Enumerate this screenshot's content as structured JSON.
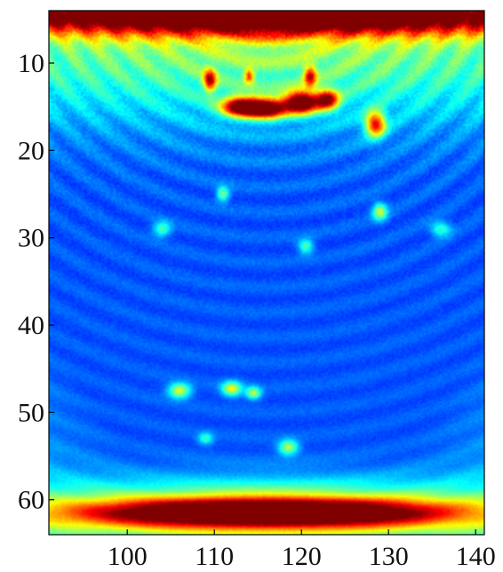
{
  "chart_data": {
    "type": "heatmap",
    "title": "",
    "xlabel": "",
    "ylabel": "",
    "colormap": "jet",
    "colors": [
      "#00008f",
      "#0000ff",
      "#00ffff",
      "#ffff00",
      "#ff0000",
      "#800000"
    ],
    "xlim": [
      91,
      141
    ],
    "ylim": [
      4,
      64
    ],
    "y_inverted": true,
    "grid": false,
    "colorbar": false,
    "x_ticks": [
      {
        "value": 100,
        "label": "100"
      },
      {
        "value": 110,
        "label": "110"
      },
      {
        "value": 120,
        "label": "120"
      },
      {
        "value": 130,
        "label": "130"
      },
      {
        "value": 140,
        "label": "140"
      }
    ],
    "y_ticks": [
      {
        "value": 10,
        "label": "10"
      },
      {
        "value": 20,
        "label": "20"
      },
      {
        "value": 30,
        "label": "30"
      },
      {
        "value": 40,
        "label": "40"
      },
      {
        "value": 50,
        "label": "50"
      },
      {
        "value": 60,
        "label": "60"
      }
    ],
    "background_intensity": 0.1,
    "features": [
      {
        "name": "top-band",
        "x": 116,
        "y": 4.5,
        "sx": 30,
        "sy": 1.6,
        "intensity": 1.0
      },
      {
        "name": "top-glow",
        "x": 116,
        "y": 8,
        "sx": 40,
        "sy": 6,
        "intensity": 0.35
      },
      {
        "name": "upper-cluster-1",
        "x": 113,
        "y": 15,
        "sx": 1.5,
        "sy": 0.8,
        "intensity": 0.85
      },
      {
        "name": "upper-cluster-2",
        "x": 116,
        "y": 15.2,
        "sx": 1.6,
        "sy": 0.8,
        "intensity": 0.9
      },
      {
        "name": "upper-cluster-3",
        "x": 120,
        "y": 14.5,
        "sx": 1.4,
        "sy": 0.9,
        "intensity": 0.95
      },
      {
        "name": "upper-cluster-4",
        "x": 123,
        "y": 14.2,
        "sx": 0.9,
        "sy": 0.8,
        "intensity": 0.7
      },
      {
        "name": "upper-cluster-5",
        "x": 109.5,
        "y": 12,
        "sx": 0.5,
        "sy": 0.9,
        "intensity": 0.6
      },
      {
        "name": "upper-cluster-6",
        "x": 121,
        "y": 11.5,
        "sx": 0.5,
        "sy": 0.8,
        "intensity": 0.55
      },
      {
        "name": "upper-cluster-7",
        "x": 114,
        "y": 11.5,
        "sx": 0.4,
        "sy": 0.6,
        "intensity": 0.45
      },
      {
        "name": "right-spot",
        "x": 128.5,
        "y": 17,
        "sx": 0.8,
        "sy": 1.0,
        "intensity": 0.7
      },
      {
        "name": "mid-spot-1",
        "x": 111,
        "y": 25,
        "sx": 0.5,
        "sy": 0.6,
        "intensity": 0.35
      },
      {
        "name": "mid-spot-2",
        "x": 129,
        "y": 27,
        "sx": 0.6,
        "sy": 0.7,
        "intensity": 0.4
      },
      {
        "name": "mid-spot-3",
        "x": 104,
        "y": 29,
        "sx": 0.7,
        "sy": 0.6,
        "intensity": 0.3
      },
      {
        "name": "mid-spot-4",
        "x": 120.5,
        "y": 31,
        "sx": 0.6,
        "sy": 0.6,
        "intensity": 0.3
      },
      {
        "name": "mid-spot-5",
        "x": 136,
        "y": 29,
        "sx": 0.8,
        "sy": 0.6,
        "intensity": 0.28
      },
      {
        "name": "lower-spot-1",
        "x": 106,
        "y": 47.5,
        "sx": 0.9,
        "sy": 0.6,
        "intensity": 0.45
      },
      {
        "name": "lower-spot-2",
        "x": 112,
        "y": 47.3,
        "sx": 0.8,
        "sy": 0.6,
        "intensity": 0.45
      },
      {
        "name": "lower-spot-3",
        "x": 114.5,
        "y": 47.8,
        "sx": 0.6,
        "sy": 0.5,
        "intensity": 0.4
      },
      {
        "name": "lower-spot-4",
        "x": 118.5,
        "y": 54,
        "sx": 0.8,
        "sy": 0.6,
        "intensity": 0.4
      },
      {
        "name": "lower-spot-5",
        "x": 109,
        "y": 53,
        "sx": 0.6,
        "sy": 0.5,
        "intensity": 0.25
      },
      {
        "name": "bottom-band",
        "x": 116,
        "y": 61.5,
        "sx": 14,
        "sy": 1.1,
        "intensity": 1.0
      },
      {
        "name": "bottom-halo",
        "x": 116,
        "y": 61.5,
        "sx": 22,
        "sy": 2.5,
        "intensity": 0.5
      }
    ]
  }
}
